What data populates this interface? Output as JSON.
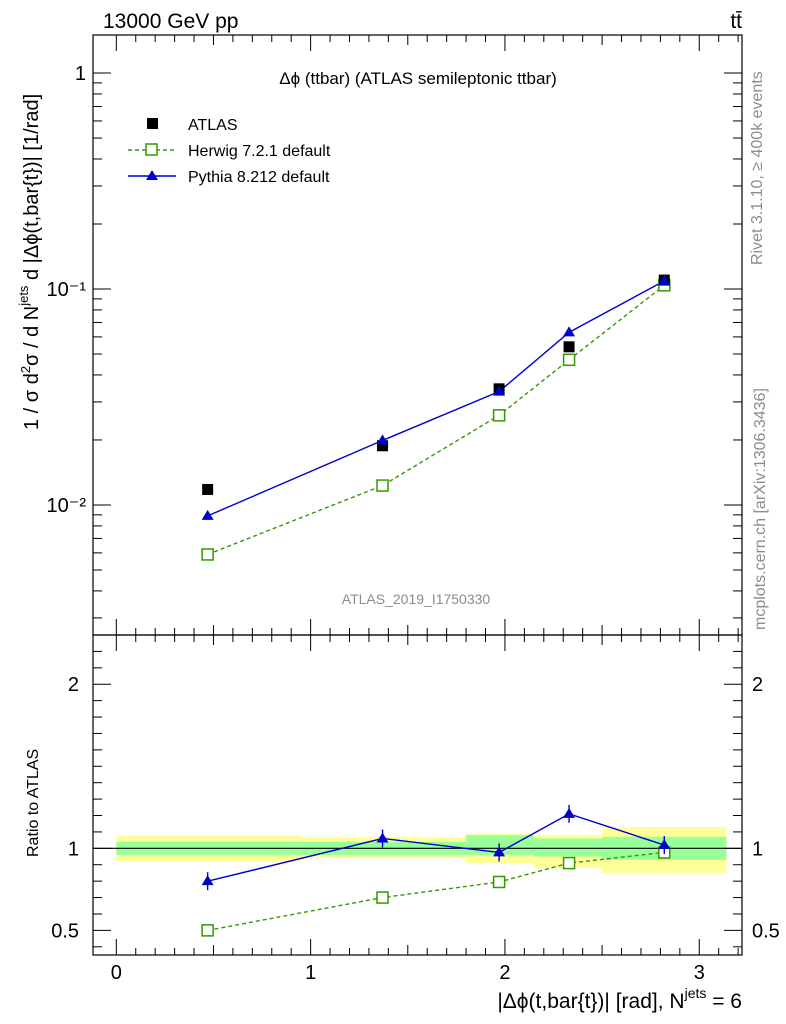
{
  "header": {
    "energy_label": "13000 GeV pp",
    "process_label": "tt̄"
  },
  "side_labels": {
    "rivet": "Rivet 3.1.10, ≥ 400k events",
    "mcplots": "mcplots.cern.ch [arXiv:1306.3436]"
  },
  "analysis_id": "ATLAS_2019_I1750330",
  "colors": {
    "atlas": "#000000",
    "herwig": "#339900",
    "pythia": "#0000cc",
    "band_inner": "#99ff99",
    "band_outer": "#ffff99"
  },
  "chart_data": [
    {
      "type": "scatter",
      "panel": "main",
      "title": "Δϕ (ttbar) (ATLAS semileptonic ttbar)",
      "ylabel": "1 / σ d²σ / d N^jets d |Δϕ(t,bar{t})| [1/rad]",
      "yscale": "log",
      "xlim": [
        -0.12,
        3.22
      ],
      "ylim": [
        0.0025,
        1.5
      ],
      "y_ticks": [
        {
          "value": 0.01,
          "label": "10⁻²"
        },
        {
          "value": 0.1,
          "label": "10⁻¹"
        },
        {
          "value": 1,
          "label": "1"
        }
      ],
      "legend_position": "top-left",
      "x": [
        0.47,
        1.37,
        1.97,
        2.33,
        2.82
      ],
      "series": [
        {
          "name": "ATLAS",
          "style": "markers",
          "values": [
            0.0118,
            0.0188,
            0.0345,
            0.054,
            0.11
          ]
        },
        {
          "name": "Herwig 7.2.1 default",
          "style": "dashed",
          "values": [
            0.0059,
            0.0123,
            0.026,
            0.047,
            0.104
          ]
        },
        {
          "name": "Pythia 8.212 default",
          "style": "solid",
          "values": [
            0.0089,
            0.0199,
            0.0335,
            0.063,
            0.109
          ]
        }
      ]
    },
    {
      "type": "line",
      "panel": "ratio",
      "ylabel": "Ratio to ATLAS",
      "xlabel_main": "|Δϕ(t,bar{t})| [rad], N",
      "xlabel_super": "jets",
      "xlabel_tail": " = 6",
      "xlim": [
        -0.12,
        3.22
      ],
      "ylim": [
        0.35,
        2.3
      ],
      "x_ticks": [
        0,
        1,
        2,
        3
      ],
      "y_ticks": [
        0.5,
        1,
        2
      ],
      "x": [
        0.47,
        1.37,
        1.97,
        2.33,
        2.82
      ],
      "series": [
        {
          "name": "Herwig 7.2.1 default",
          "values": [
            0.5,
            0.7,
            0.795,
            0.91,
            0.975
          ]
        },
        {
          "name": "Pythia 8.212 default",
          "values": [
            0.8,
            1.06,
            0.975,
            1.21,
            1.02
          ]
        }
      ],
      "uncertainty_bands": [
        {
          "x_range": [
            0,
            0.95
          ],
          "inner": [
            0.96,
            1.04
          ],
          "outer": [
            0.92,
            1.08
          ]
        },
        {
          "x_range": [
            0.95,
            1.8
          ],
          "inner": [
            0.96,
            1.04
          ],
          "outer": [
            0.94,
            1.07
          ]
        },
        {
          "x_range": [
            1.8,
            2.15
          ],
          "inner": [
            0.96,
            1.08
          ],
          "outer": [
            0.91,
            1.09
          ]
        },
        {
          "x_range": [
            2.15,
            2.5
          ],
          "inner": [
            0.95,
            1.06
          ],
          "outer": [
            0.88,
            1.08
          ]
        },
        {
          "x_range": [
            2.5,
            3.14
          ],
          "inner": [
            0.93,
            1.07
          ],
          "outer": [
            0.85,
            1.13
          ]
        }
      ]
    }
  ]
}
